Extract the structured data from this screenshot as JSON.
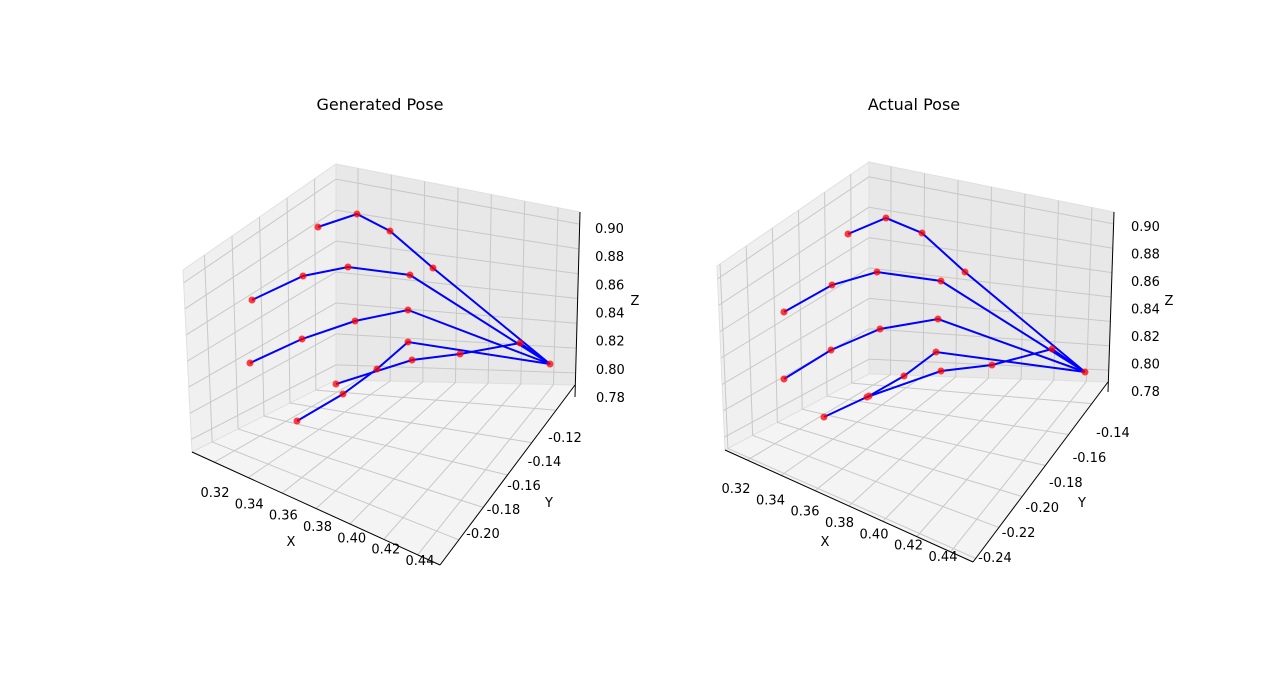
{
  "chart_data": [
    {
      "type": "scatter3d-line",
      "title": "Generated Pose",
      "xlabel": "X",
      "ylabel": "Y",
      "zlabel": "Z",
      "x_ticks": [
        "0.32",
        "0.34",
        "0.36",
        "0.38",
        "0.40",
        "0.42",
        "0.44"
      ],
      "y_ticks": [
        "-0.12",
        "-0.14",
        "-0.16",
        "-0.18",
        "-0.20"
      ],
      "z_ticks": [
        "0.90",
        "0.88",
        "0.86",
        "0.84",
        "0.82",
        "0.80",
        "0.78"
      ],
      "grid": true,
      "point_color": "#ff0000",
      "line_color": "#0000ff"
    },
    {
      "type": "scatter3d-line",
      "title": "Actual Pose",
      "xlabel": "X",
      "ylabel": "Y",
      "zlabel": "Z",
      "x_ticks": [
        "0.32",
        "0.34",
        "0.36",
        "0.38",
        "0.40",
        "0.42",
        "0.44"
      ],
      "y_ticks": [
        "-0.14",
        "-0.16",
        "-0.18",
        "-0.20",
        "-0.22",
        "-0.24"
      ],
      "z_ticks": [
        "0.90",
        "0.88",
        "0.86",
        "0.84",
        "0.82",
        "0.80",
        "0.78"
      ],
      "grid": true,
      "point_color": "#ff0000",
      "line_color": "#0000ff"
    }
  ]
}
